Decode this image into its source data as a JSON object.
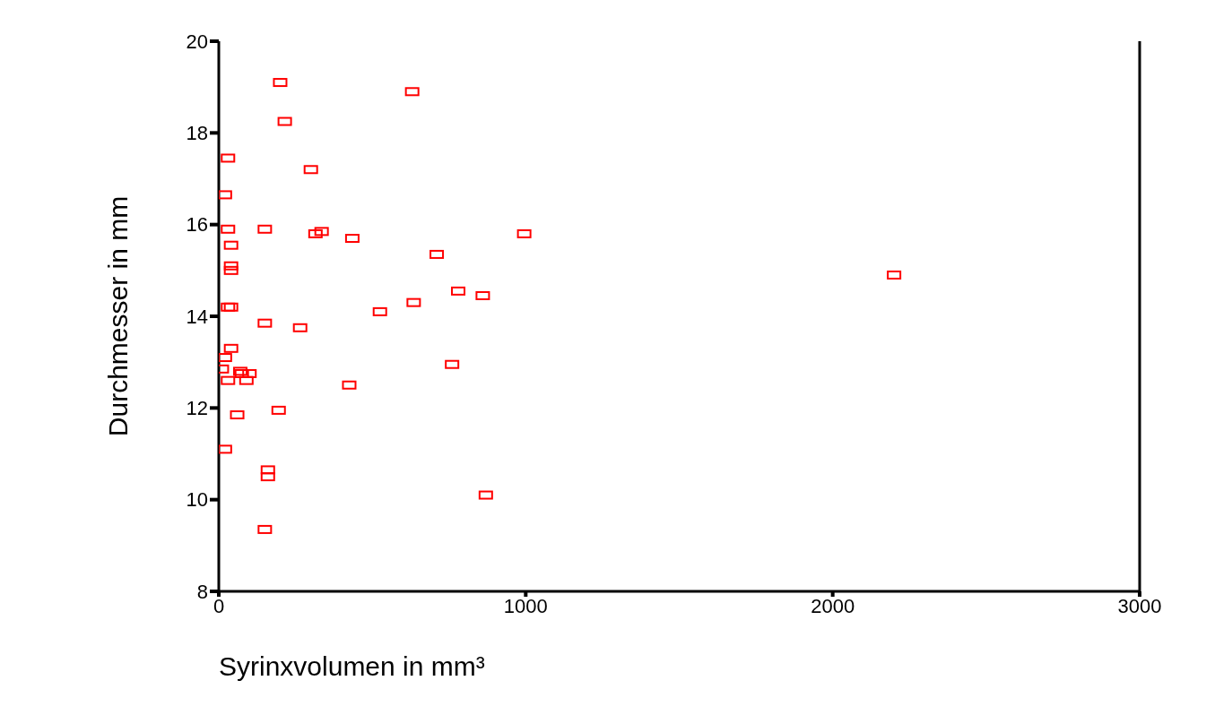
{
  "chart_data": {
    "type": "scatter",
    "xlabel": "Syrinxvolumen in mm³",
    "ylabel": "Durchmesser in mm",
    "xlim": [
      0,
      3000
    ],
    "xticks": [
      0,
      1000,
      2000,
      3000
    ],
    "ylim": [
      8,
      20
    ],
    "yticks": [
      8,
      10,
      12,
      14,
      16,
      18,
      20
    ],
    "grid": false,
    "legend": false,
    "marker": "square",
    "series": [
      {
        "color": "#ff0000",
        "x": [
          200,
          630,
          215,
          30,
          300,
          20,
          30,
          150,
          315,
          335,
          435,
          995,
          40,
          40,
          40,
          710,
          2200,
          780,
          860,
          30,
          40,
          635,
          525,
          150,
          265,
          40,
          20,
          10,
          70,
          75,
          100,
          30,
          90,
          760,
          425,
          195,
          60,
          20,
          160,
          160,
          870,
          150
        ],
        "values": [
          19.1,
          18.9,
          18.25,
          17.45,
          17.2,
          16.65,
          15.9,
          15.9,
          15.8,
          15.85,
          15.7,
          15.8,
          15.55,
          15.1,
          15.0,
          15.35,
          14.9,
          14.55,
          14.45,
          14.2,
          14.2,
          14.3,
          14.1,
          13.85,
          13.75,
          13.3,
          13.1,
          12.85,
          12.8,
          12.75,
          12.75,
          12.6,
          12.6,
          12.95,
          12.5,
          11.95,
          11.85,
          11.1,
          10.65,
          10.5,
          10.1,
          9.35
        ]
      }
    ]
  }
}
